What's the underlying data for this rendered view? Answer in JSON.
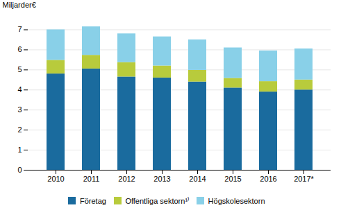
{
  "chart_data": {
    "type": "bar",
    "stacked": true,
    "categories": [
      "2010",
      "2011",
      "2012",
      "2013",
      "2014",
      "2015",
      "2016",
      "2017*"
    ],
    "series": [
      {
        "name": "Företag",
        "color": "#1a6b9e",
        "values": [
          4.8,
          5.05,
          4.65,
          4.6,
          4.4,
          4.1,
          3.9,
          4.0
        ]
      },
      {
        "name": "Offentliga sektorn¹⁾",
        "color": "#b8cb3c",
        "values": [
          0.68,
          0.68,
          0.72,
          0.6,
          0.58,
          0.48,
          0.52,
          0.5
        ]
      },
      {
        "name": "Högskolesektorn",
        "color": "#89d0e8",
        "values": [
          1.52,
          1.42,
          1.43,
          1.45,
          1.52,
          1.52,
          1.53,
          1.55
        ]
      }
    ],
    "ylabel": "Miljarder€",
    "ylim": [
      0,
      7.5
    ],
    "yticks": [
      0,
      1,
      2,
      3,
      4,
      5,
      6,
      7
    ],
    "grid": true,
    "legend": "bottom"
  }
}
